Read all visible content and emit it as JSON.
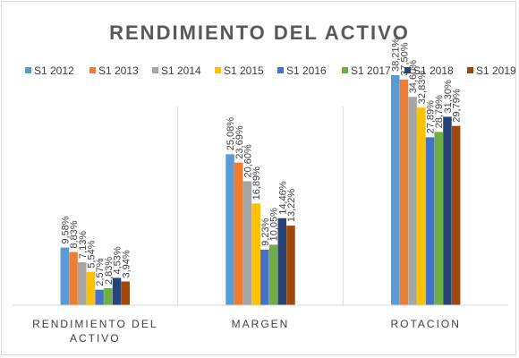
{
  "chart_data": {
    "type": "bar",
    "title": "RENDIMIENTO DEL ACTIVO",
    "categories": [
      [
        "RENDIMIENTO DEL",
        "ACTIVO"
      ],
      [
        "MARGEN"
      ],
      [
        "ROTACION"
      ]
    ],
    "series": [
      {
        "name": "S1 2012",
        "color": "#5b9bd5",
        "values": [
          9.58,
          25.08,
          38.21
        ],
        "labels": [
          "9,58%",
          "25,08%",
          "38,21%"
        ]
      },
      {
        "name": "S1 2013",
        "color": "#ed7d31",
        "values": [
          8.83,
          23.69,
          37.5
        ],
        "labels": [
          "8,83%",
          "23,69%",
          "37,50%"
        ]
      },
      {
        "name": "S1 2014",
        "color": "#a5a5a5",
        "values": [
          7.13,
          20.6,
          34.6
        ],
        "labels": [
          "7,13%",
          "20,60%",
          "34,60%"
        ]
      },
      {
        "name": "S1 2015",
        "color": "#ffc000",
        "values": [
          5.54,
          16.89,
          32.83
        ],
        "labels": [
          "5,54%",
          "16,89%",
          "32,83%"
        ]
      },
      {
        "name": "S1 2016",
        "color": "#4472c4",
        "values": [
          2.57,
          9.23,
          27.89
        ],
        "labels": [
          "2,57%",
          "9,23%",
          "27,89%"
        ]
      },
      {
        "name": "S1 2017",
        "color": "#70ad47",
        "values": [
          2.83,
          10.05,
          28.79
        ],
        "labels": [
          "2,83%",
          "10,05%",
          "28,79%"
        ]
      },
      {
        "name": "S1 2018",
        "color": "#264478",
        "values": [
          4.53,
          14.46,
          31.3
        ],
        "labels": [
          "4,53%",
          "14,46%",
          "31,30%"
        ]
      },
      {
        "name": "S1 2019",
        "color": "#9e480e",
        "values": [
          3.94,
          13.22,
          29.79
        ],
        "labels": [
          "3,94%",
          "13,22%",
          "29,79%"
        ]
      }
    ],
    "ylim": [
      0,
      40
    ],
    "grid": false,
    "legend": "top"
  }
}
